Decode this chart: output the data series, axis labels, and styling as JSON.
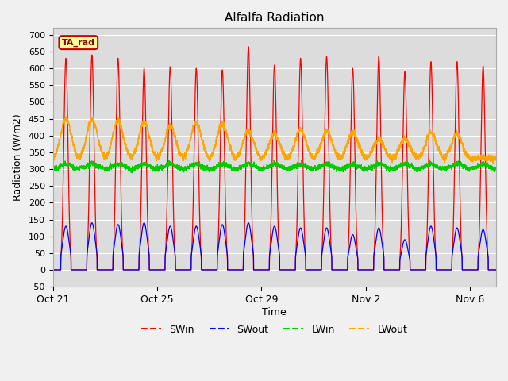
{
  "title": "Alfalfa Radiation",
  "xlabel": "Time",
  "ylabel": "Radiation (W/m2)",
  "ylim": [
    -50,
    720
  ],
  "yticks": [
    -50,
    0,
    50,
    100,
    150,
    200,
    250,
    300,
    350,
    400,
    450,
    500,
    550,
    600,
    650,
    700
  ],
  "fig_bg_color": "#f0f0f0",
  "plot_bg_color": "#dcdcdc",
  "grid_color": "#ffffff",
  "series_colors": {
    "SWin": "#ff0000",
    "SWout": "#0000ff",
    "LWin": "#00cc00",
    "LWout": "#ffa500"
  },
  "legend_label": "TA_rad",
  "legend_bg": "#ffff99",
  "legend_border": "#cc0000",
  "n_days": 17,
  "xtick_labels": [
    "Oct 21",
    "Oct 25",
    "Oct 29",
    "Nov 2",
    "Nov 6"
  ],
  "xtick_positions": [
    0,
    4,
    8,
    12,
    16
  ],
  "sw_peaks": [
    630,
    640,
    630,
    600,
    605,
    600,
    595,
    665,
    610,
    630,
    635,
    600,
    635,
    590,
    620,
    620,
    607
  ],
  "swout_peaks": [
    130,
    140,
    135,
    140,
    130,
    130,
    135,
    140,
    130,
    125,
    125,
    105,
    125,
    90,
    130,
    125,
    120
  ],
  "lwout_peaks": [
    450,
    450,
    445,
    440,
    430,
    440,
    435,
    415,
    405,
    420,
    415,
    410,
    390,
    390,
    410,
    405,
    335
  ]
}
